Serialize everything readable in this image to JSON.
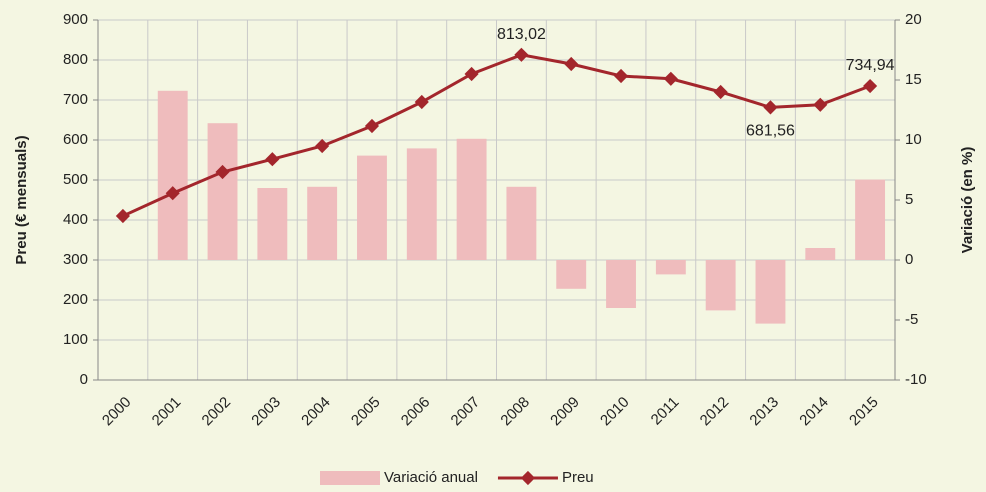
{
  "chart_data": {
    "type": "bar-line",
    "y_label": "Preu (€ mensuals)",
    "y2_label": "Variació (en %)",
    "categories": [
      "2000",
      "2001",
      "2002",
      "2003",
      "2004",
      "2005",
      "2006",
      "2007",
      "2008",
      "2009",
      "2010",
      "2011",
      "2012",
      "2013",
      "2014",
      "2015"
    ],
    "series": [
      {
        "name": "Variació anual",
        "type": "bar",
        "axis": "y2",
        "color": "#efbcbd",
        "values": [
          null,
          14.1,
          11.4,
          6.0,
          6.1,
          8.7,
          9.3,
          10.1,
          6.1,
          -2.4,
          -4.0,
          -1.2,
          -4.2,
          -5.3,
          1.0,
          6.7
        ]
      },
      {
        "name": "Preu",
        "type": "line",
        "axis": "y",
        "color": "#a3262c",
        "values": [
          410,
          467,
          520,
          552,
          585,
          635,
          695,
          765,
          813.02,
          790,
          760,
          753,
          720,
          681.56,
          688,
          734.94
        ],
        "value_labels": [
          null,
          null,
          null,
          null,
          null,
          null,
          null,
          null,
          "813,02",
          null,
          null,
          null,
          null,
          "681,56",
          null,
          "734,94"
        ]
      }
    ],
    "ylim": [
      0,
      900
    ],
    "yticks": [
      0,
      100,
      200,
      300,
      400,
      500,
      600,
      700,
      800,
      900
    ],
    "y2lim": [
      -10,
      20
    ],
    "y2ticks": [
      -10,
      -5,
      0,
      5,
      10,
      15,
      20
    ],
    "grid": true,
    "legend": "bottom"
  }
}
